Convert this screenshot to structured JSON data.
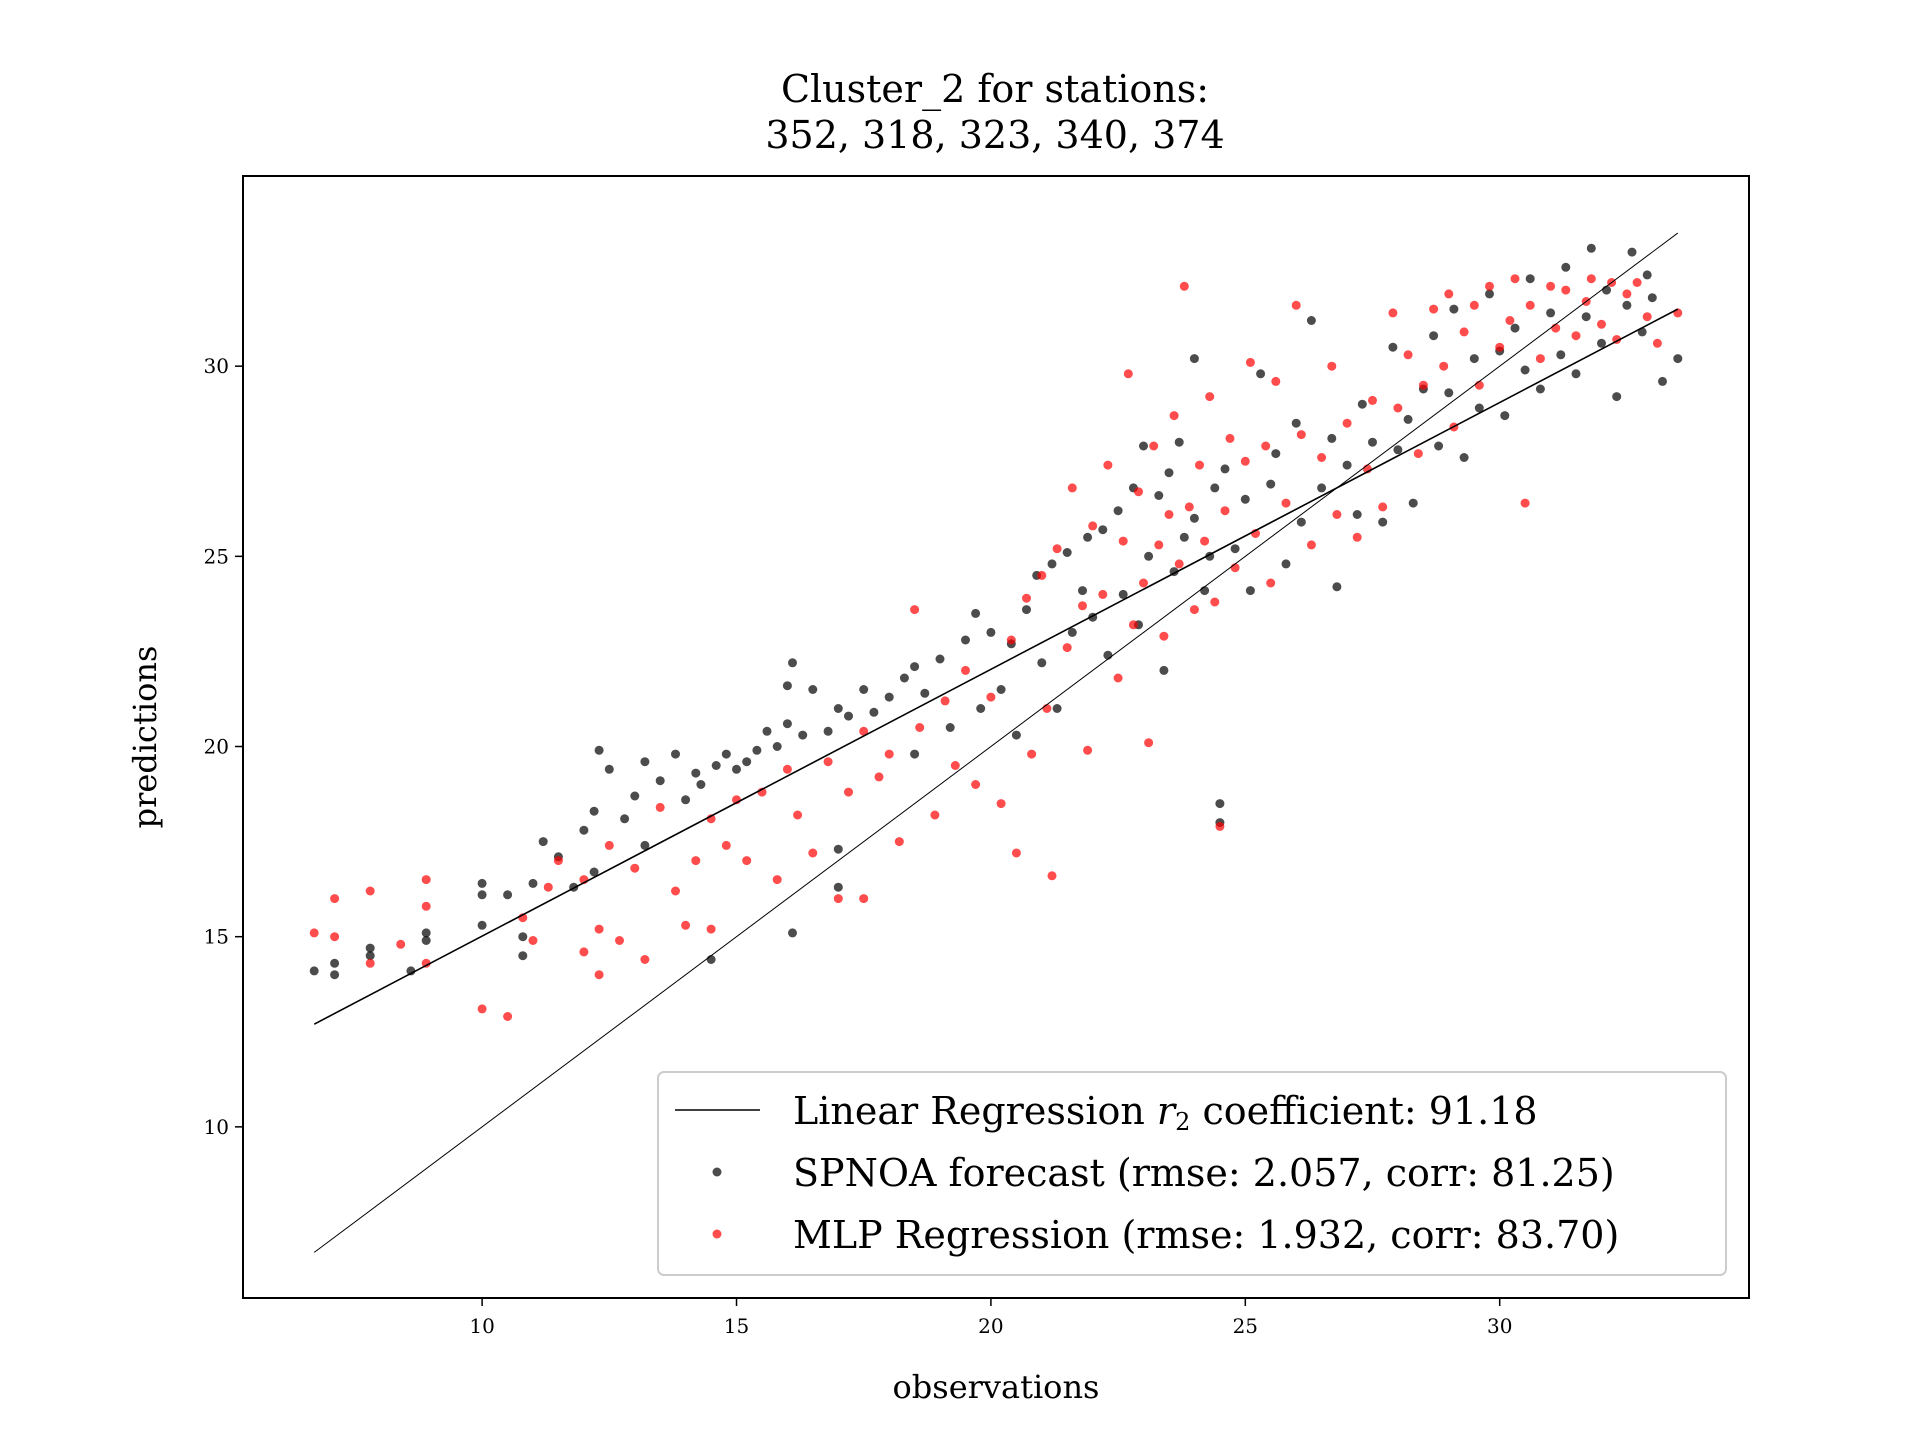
{
  "chart_data": {
    "type": "scatter",
    "title_lines": [
      "Cluster_2 for stations:",
      "352, 318, 323, 340, 374"
    ],
    "xlabel": "observations",
    "ylabel": "predictions",
    "xlim": [
      5.3,
      34.9
    ],
    "ylim": [
      5.5,
      35.0
    ],
    "x_ticks": [
      10,
      15,
      20,
      25,
      30
    ],
    "y_ticks": [
      10,
      15,
      20,
      25,
      30
    ],
    "grid": false,
    "legend_position": "lower-right",
    "legend": {
      "line_prefix": "Linear Regression ",
      "line_symbol": "r",
      "line_subscript": "2",
      "line_suffix": " coefficient: 91.18",
      "spnoa": "SPNOA forecast (rmse: 2.057, corr: 81.25)",
      "mlp": "MLP Regression (rmse: 1.932, corr: 83.70)"
    },
    "lines": [
      {
        "name": "identity",
        "x": [
          6.7,
          33.5
        ],
        "y": [
          6.7,
          33.5
        ],
        "color": "#000000"
      },
      {
        "name": "regression",
        "x": [
          6.7,
          33.5
        ],
        "y": [
          12.7,
          31.5
        ],
        "color": "#000000"
      }
    ],
    "series": [
      {
        "name": "SPNOA",
        "color": "#000000",
        "opacity": 0.7,
        "points": [
          [
            6.7,
            14.1
          ],
          [
            7.1,
            14.0
          ],
          [
            7.1,
            14.3
          ],
          [
            7.8,
            14.5
          ],
          [
            7.8,
            14.7
          ],
          [
            8.6,
            14.1
          ],
          [
            8.9,
            14.9
          ],
          [
            8.9,
            15.1
          ],
          [
            10.0,
            16.4
          ],
          [
            10.0,
            16.1
          ],
          [
            10.0,
            15.3
          ],
          [
            10.5,
            16.1
          ],
          [
            10.8,
            15.0
          ],
          [
            10.8,
            14.5
          ],
          [
            11.0,
            16.4
          ],
          [
            11.2,
            17.5
          ],
          [
            11.5,
            17.1
          ],
          [
            11.8,
            16.3
          ],
          [
            12.0,
            17.8
          ],
          [
            12.2,
            16.7
          ],
          [
            12.2,
            18.3
          ],
          [
            12.3,
            19.9
          ],
          [
            12.5,
            19.4
          ],
          [
            12.8,
            18.1
          ],
          [
            13.0,
            18.7
          ],
          [
            13.2,
            19.6
          ],
          [
            13.2,
            17.4
          ],
          [
            13.5,
            19.1
          ],
          [
            13.8,
            19.8
          ],
          [
            14.0,
            18.6
          ],
          [
            14.2,
            19.3
          ],
          [
            14.3,
            19.0
          ],
          [
            14.5,
            14.4
          ],
          [
            14.6,
            19.5
          ],
          [
            14.8,
            19.8
          ],
          [
            15.0,
            19.4
          ],
          [
            15.2,
            19.6
          ],
          [
            15.4,
            19.9
          ],
          [
            15.6,
            20.4
          ],
          [
            15.8,
            20.0
          ],
          [
            16.0,
            21.6
          ],
          [
            16.0,
            20.6
          ],
          [
            16.1,
            22.2
          ],
          [
            16.1,
            15.1
          ],
          [
            16.3,
            20.3
          ],
          [
            16.5,
            21.5
          ],
          [
            16.8,
            20.4
          ],
          [
            17.0,
            21.0
          ],
          [
            17.0,
            17.3
          ],
          [
            17.0,
            16.3
          ],
          [
            17.2,
            20.8
          ],
          [
            17.5,
            21.5
          ],
          [
            17.7,
            20.9
          ],
          [
            18.0,
            21.3
          ],
          [
            18.3,
            21.8
          ],
          [
            18.5,
            22.1
          ],
          [
            18.5,
            19.8
          ],
          [
            18.7,
            21.4
          ],
          [
            19.0,
            22.3
          ],
          [
            19.2,
            20.5
          ],
          [
            19.5,
            22.8
          ],
          [
            19.7,
            23.5
          ],
          [
            19.8,
            21.0
          ],
          [
            20.0,
            23.0
          ],
          [
            20.2,
            21.5
          ],
          [
            20.4,
            22.7
          ],
          [
            20.5,
            20.3
          ],
          [
            20.7,
            23.6
          ],
          [
            20.9,
            24.5
          ],
          [
            21.0,
            22.2
          ],
          [
            21.2,
            24.8
          ],
          [
            21.3,
            21.0
          ],
          [
            21.5,
            25.1
          ],
          [
            21.6,
            23.0
          ],
          [
            21.8,
            24.1
          ],
          [
            21.9,
            25.5
          ],
          [
            22.0,
            23.4
          ],
          [
            22.2,
            25.7
          ],
          [
            22.3,
            22.4
          ],
          [
            22.5,
            26.2
          ],
          [
            22.6,
            24.0
          ],
          [
            22.8,
            26.8
          ],
          [
            22.9,
            23.2
          ],
          [
            23.0,
            27.9
          ],
          [
            23.1,
            25.0
          ],
          [
            23.3,
            26.6
          ],
          [
            23.4,
            22.0
          ],
          [
            23.5,
            27.2
          ],
          [
            23.6,
            24.6
          ],
          [
            23.7,
            28.0
          ],
          [
            23.8,
            25.5
          ],
          [
            24.0,
            26.0
          ],
          [
            24.0,
            30.2
          ],
          [
            24.2,
            24.1
          ],
          [
            24.3,
            25.0
          ],
          [
            24.4,
            26.8
          ],
          [
            24.5,
            18.5
          ],
          [
            24.5,
            18.0
          ],
          [
            24.6,
            27.3
          ],
          [
            24.8,
            25.2
          ],
          [
            25.0,
            26.5
          ],
          [
            25.1,
            24.1
          ],
          [
            25.3,
            29.8
          ],
          [
            25.5,
            26.9
          ],
          [
            25.6,
            27.7
          ],
          [
            25.8,
            24.8
          ],
          [
            26.0,
            28.5
          ],
          [
            26.1,
            25.9
          ],
          [
            26.3,
            31.2
          ],
          [
            26.5,
            26.8
          ],
          [
            26.7,
            28.1
          ],
          [
            26.8,
            24.2
          ],
          [
            27.0,
            27.4
          ],
          [
            27.2,
            26.1
          ],
          [
            27.3,
            29.0
          ],
          [
            27.5,
            28.0
          ],
          [
            27.7,
            25.9
          ],
          [
            27.9,
            30.5
          ],
          [
            28.0,
            27.8
          ],
          [
            28.2,
            28.6
          ],
          [
            28.3,
            26.4
          ],
          [
            28.5,
            29.4
          ],
          [
            28.7,
            30.8
          ],
          [
            28.8,
            27.9
          ],
          [
            29.0,
            29.3
          ],
          [
            29.1,
            31.5
          ],
          [
            29.3,
            27.6
          ],
          [
            29.5,
            30.2
          ],
          [
            29.6,
            28.9
          ],
          [
            29.8,
            31.9
          ],
          [
            30.0,
            30.4
          ],
          [
            30.1,
            28.7
          ],
          [
            30.3,
            31.0
          ],
          [
            30.5,
            29.9
          ],
          [
            30.6,
            32.3
          ],
          [
            30.8,
            29.4
          ],
          [
            31.0,
            31.4
          ],
          [
            31.2,
            30.3
          ],
          [
            31.3,
            32.6
          ],
          [
            31.5,
            29.8
          ],
          [
            31.7,
            31.3
          ],
          [
            31.8,
            33.1
          ],
          [
            32.0,
            30.6
          ],
          [
            32.1,
            32.0
          ],
          [
            32.3,
            29.2
          ],
          [
            32.5,
            31.6
          ],
          [
            32.6,
            33.0
          ],
          [
            32.8,
            30.9
          ],
          [
            33.0,
            31.8
          ],
          [
            33.2,
            29.6
          ],
          [
            33.5,
            30.2
          ],
          [
            32.9,
            32.4
          ]
        ]
      },
      {
        "name": "MLP",
        "color": "#ff0000",
        "opacity": 0.7,
        "points": [
          [
            6.7,
            15.1
          ],
          [
            7.1,
            16.0
          ],
          [
            7.1,
            15.0
          ],
          [
            7.8,
            16.2
          ],
          [
            7.8,
            14.3
          ],
          [
            8.4,
            14.8
          ],
          [
            8.9,
            16.5
          ],
          [
            8.9,
            15.8
          ],
          [
            8.9,
            14.3
          ],
          [
            10.0,
            13.1
          ],
          [
            10.5,
            12.9
          ],
          [
            10.8,
            15.5
          ],
          [
            11.0,
            14.9
          ],
          [
            11.3,
            16.3
          ],
          [
            11.5,
            17.0
          ],
          [
            12.0,
            16.5
          ],
          [
            12.0,
            14.6
          ],
          [
            12.3,
            15.2
          ],
          [
            12.3,
            14.0
          ],
          [
            12.5,
            17.4
          ],
          [
            12.7,
            14.9
          ],
          [
            13.0,
            16.8
          ],
          [
            13.2,
            14.4
          ],
          [
            13.5,
            18.4
          ],
          [
            13.8,
            16.2
          ],
          [
            14.0,
            15.3
          ],
          [
            14.2,
            17.0
          ],
          [
            14.5,
            18.1
          ],
          [
            14.5,
            15.2
          ],
          [
            14.8,
            17.4
          ],
          [
            15.0,
            18.6
          ],
          [
            15.2,
            17.0
          ],
          [
            15.5,
            18.8
          ],
          [
            15.8,
            16.5
          ],
          [
            16.0,
            19.4
          ],
          [
            16.2,
            18.2
          ],
          [
            16.5,
            17.2
          ],
          [
            16.8,
            19.6
          ],
          [
            17.0,
            16.0
          ],
          [
            17.2,
            18.8
          ],
          [
            17.5,
            20.4
          ],
          [
            17.5,
            16.0
          ],
          [
            17.8,
            19.2
          ],
          [
            18.0,
            19.8
          ],
          [
            18.2,
            17.5
          ],
          [
            18.5,
            23.6
          ],
          [
            18.6,
            20.5
          ],
          [
            18.9,
            18.2
          ],
          [
            19.1,
            21.2
          ],
          [
            19.3,
            19.5
          ],
          [
            19.5,
            22.0
          ],
          [
            19.7,
            19.0
          ],
          [
            20.0,
            21.3
          ],
          [
            20.2,
            18.5
          ],
          [
            20.4,
            22.8
          ],
          [
            20.5,
            17.2
          ],
          [
            20.7,
            23.9
          ],
          [
            20.8,
            19.8
          ],
          [
            21.0,
            24.5
          ],
          [
            21.1,
            21.0
          ],
          [
            21.2,
            16.6
          ],
          [
            21.3,
            25.2
          ],
          [
            21.5,
            22.6
          ],
          [
            21.6,
            26.8
          ],
          [
            21.8,
            23.7
          ],
          [
            21.9,
            19.9
          ],
          [
            22.0,
            25.8
          ],
          [
            22.2,
            24.0
          ],
          [
            22.3,
            27.4
          ],
          [
            22.5,
            21.8
          ],
          [
            22.6,
            25.4
          ],
          [
            22.7,
            29.8
          ],
          [
            22.8,
            23.2
          ],
          [
            22.9,
            26.7
          ],
          [
            23.0,
            24.3
          ],
          [
            23.1,
            20.1
          ],
          [
            23.2,
            27.9
          ],
          [
            23.3,
            25.3
          ],
          [
            23.4,
            22.9
          ],
          [
            23.5,
            26.1
          ],
          [
            23.6,
            28.7
          ],
          [
            23.7,
            24.8
          ],
          [
            23.8,
            32.1
          ],
          [
            23.9,
            26.3
          ],
          [
            24.0,
            23.6
          ],
          [
            24.1,
            27.4
          ],
          [
            24.2,
            25.4
          ],
          [
            24.3,
            29.2
          ],
          [
            24.4,
            23.8
          ],
          [
            24.5,
            17.9
          ],
          [
            24.6,
            26.2
          ],
          [
            24.7,
            28.1
          ],
          [
            24.8,
            24.7
          ],
          [
            25.0,
            27.5
          ],
          [
            25.1,
            30.1
          ],
          [
            25.2,
            25.6
          ],
          [
            25.4,
            27.9
          ],
          [
            25.5,
            24.3
          ],
          [
            25.6,
            29.6
          ],
          [
            25.8,
            26.4
          ],
          [
            26.0,
            31.6
          ],
          [
            26.1,
            28.2
          ],
          [
            26.3,
            25.3
          ],
          [
            26.5,
            27.6
          ],
          [
            26.7,
            30.0
          ],
          [
            26.8,
            26.1
          ],
          [
            27.0,
            28.5
          ],
          [
            27.2,
            25.5
          ],
          [
            27.4,
            27.3
          ],
          [
            27.5,
            29.1
          ],
          [
            27.7,
            26.3
          ],
          [
            27.9,
            31.4
          ],
          [
            28.0,
            28.9
          ],
          [
            28.2,
            30.3
          ],
          [
            28.4,
            27.7
          ],
          [
            28.5,
            29.5
          ],
          [
            28.7,
            31.5
          ],
          [
            28.9,
            30.0
          ],
          [
            29.0,
            31.9
          ],
          [
            29.1,
            28.4
          ],
          [
            29.3,
            30.9
          ],
          [
            29.5,
            31.6
          ],
          [
            29.6,
            29.5
          ],
          [
            29.8,
            32.1
          ],
          [
            30.0,
            30.5
          ],
          [
            30.2,
            31.2
          ],
          [
            30.3,
            32.3
          ],
          [
            30.5,
            26.4
          ],
          [
            30.6,
            31.6
          ],
          [
            30.8,
            30.2
          ],
          [
            31.0,
            32.1
          ],
          [
            31.1,
            31.0
          ],
          [
            31.3,
            32.0
          ],
          [
            31.5,
            30.8
          ],
          [
            31.7,
            31.7
          ],
          [
            31.8,
            32.3
          ],
          [
            32.0,
            31.1
          ],
          [
            32.2,
            32.2
          ],
          [
            32.3,
            30.7
          ],
          [
            32.5,
            31.9
          ],
          [
            32.7,
            32.2
          ],
          [
            32.9,
            31.3
          ],
          [
            33.1,
            30.6
          ],
          [
            33.5,
            31.4
          ]
        ]
      }
    ]
  }
}
